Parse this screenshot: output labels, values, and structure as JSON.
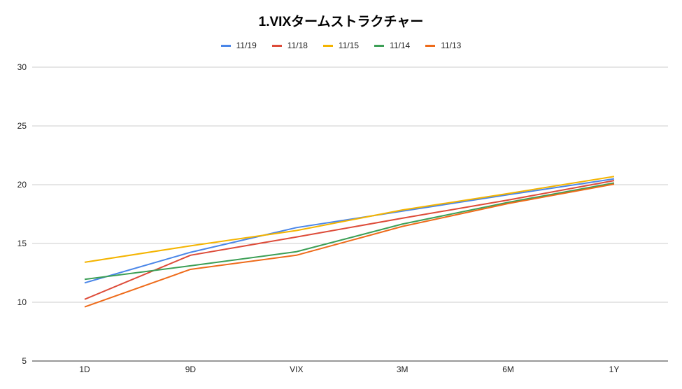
{
  "chart_data": {
    "type": "line",
    "title": "1.VIXタームストラクチャー",
    "xlabel": "",
    "ylabel": "",
    "categories": [
      "1D",
      "9D",
      "VIX",
      "3M",
      "6M",
      "1Y"
    ],
    "ylim": [
      5,
      30
    ],
    "yticks": [
      5,
      10,
      15,
      20,
      25,
      30
    ],
    "grid": true,
    "legend_position": "top",
    "series": [
      {
        "name": "11/19",
        "color": "#4a86e8",
        "values": [
          11.65,
          14.25,
          16.35,
          17.75,
          19.15,
          20.5
        ]
      },
      {
        "name": "11/18",
        "color": "#dd4b39",
        "values": [
          10.25,
          14.0,
          15.55,
          17.15,
          18.7,
          20.35
        ]
      },
      {
        "name": "11/15",
        "color": "#f4b400",
        "values": [
          13.4,
          14.8,
          16.1,
          17.85,
          19.25,
          20.7
        ]
      },
      {
        "name": "11/14",
        "color": "#3c9f56",
        "values": [
          11.95,
          13.1,
          14.3,
          16.65,
          18.5,
          20.15
        ]
      },
      {
        "name": "11/13",
        "color": "#ee6b1a",
        "values": [
          9.6,
          12.8,
          14.0,
          16.45,
          18.4,
          20.05
        ]
      }
    ]
  }
}
